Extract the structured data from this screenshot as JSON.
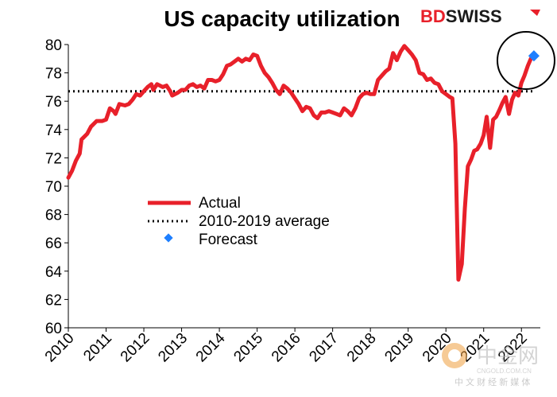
{
  "chart_data": {
    "type": "line",
    "title": "US capacity utilization",
    "ylim": [
      60,
      80
    ],
    "yticks": [
      60,
      62,
      64,
      66,
      68,
      70,
      72,
      74,
      76,
      78,
      80
    ],
    "xticks": [
      "2010",
      "2011",
      "2012",
      "2013",
      "2014",
      "2015",
      "2016",
      "2017",
      "2018",
      "2019",
      "2020",
      "2021",
      "2022"
    ],
    "xlim": [
      2010,
      2022.5
    ],
    "series": [
      {
        "name": "Actual",
        "color": "#e8202a",
        "points": [
          [
            2010.0,
            70.6
          ],
          [
            2010.1,
            71.1
          ],
          [
            2010.2,
            71.8
          ],
          [
            2010.3,
            72.3
          ],
          [
            2010.35,
            73.3
          ],
          [
            2010.5,
            73.7
          ],
          [
            2010.6,
            74.2
          ],
          [
            2010.75,
            74.6
          ],
          [
            2010.9,
            74.6
          ],
          [
            2011.0,
            74.7
          ],
          [
            2011.1,
            75.5
          ],
          [
            2011.2,
            75.3
          ],
          [
            2011.25,
            75.1
          ],
          [
            2011.35,
            75.8
          ],
          [
            2011.5,
            75.7
          ],
          [
            2011.6,
            75.8
          ],
          [
            2011.7,
            76.1
          ],
          [
            2011.8,
            76.5
          ],
          [
            2011.9,
            76.4
          ],
          [
            2012.0,
            76.7
          ],
          [
            2012.1,
            77.0
          ],
          [
            2012.2,
            77.2
          ],
          [
            2012.25,
            76.8
          ],
          [
            2012.35,
            77.2
          ],
          [
            2012.5,
            77.0
          ],
          [
            2012.6,
            77.1
          ],
          [
            2012.7,
            76.7
          ],
          [
            2012.75,
            76.4
          ],
          [
            2012.9,
            76.6
          ],
          [
            2013.0,
            76.8
          ],
          [
            2013.1,
            76.8
          ],
          [
            2013.2,
            77.1
          ],
          [
            2013.3,
            77.2
          ],
          [
            2013.4,
            77.0
          ],
          [
            2013.5,
            77.1
          ],
          [
            2013.6,
            76.9
          ],
          [
            2013.7,
            77.5
          ],
          [
            2013.8,
            77.5
          ],
          [
            2013.9,
            77.4
          ],
          [
            2014.0,
            77.5
          ],
          [
            2014.1,
            77.9
          ],
          [
            2014.2,
            78.5
          ],
          [
            2014.3,
            78.6
          ],
          [
            2014.4,
            78.8
          ],
          [
            2014.5,
            79.0
          ],
          [
            2014.6,
            78.8
          ],
          [
            2014.7,
            79.0
          ],
          [
            2014.8,
            78.9
          ],
          [
            2014.9,
            79.3
          ],
          [
            2015.0,
            79.2
          ],
          [
            2015.1,
            78.5
          ],
          [
            2015.2,
            78.0
          ],
          [
            2015.3,
            77.7
          ],
          [
            2015.4,
            77.3
          ],
          [
            2015.5,
            76.8
          ],
          [
            2015.6,
            76.5
          ],
          [
            2015.7,
            77.1
          ],
          [
            2015.8,
            76.9
          ],
          [
            2015.9,
            76.6
          ],
          [
            2016.0,
            76.2
          ],
          [
            2016.1,
            75.8
          ],
          [
            2016.2,
            75.3
          ],
          [
            2016.3,
            75.6
          ],
          [
            2016.4,
            75.5
          ],
          [
            2016.5,
            75.0
          ],
          [
            2016.6,
            74.8
          ],
          [
            2016.7,
            75.2
          ],
          [
            2016.8,
            75.2
          ],
          [
            2016.9,
            75.3
          ],
          [
            2017.0,
            75.2
          ],
          [
            2017.1,
            75.1
          ],
          [
            2017.2,
            75.0
          ],
          [
            2017.3,
            75.5
          ],
          [
            2017.4,
            75.3
          ],
          [
            2017.5,
            75.0
          ],
          [
            2017.6,
            75.5
          ],
          [
            2017.7,
            76.2
          ],
          [
            2017.8,
            76.5
          ],
          [
            2017.9,
            76.6
          ],
          [
            2018.0,
            76.5
          ],
          [
            2018.1,
            76.5
          ],
          [
            2018.2,
            77.5
          ],
          [
            2018.3,
            77.8
          ],
          [
            2018.4,
            78.1
          ],
          [
            2018.5,
            78.3
          ],
          [
            2018.6,
            79.4
          ],
          [
            2018.7,
            78.9
          ],
          [
            2018.8,
            79.5
          ],
          [
            2018.9,
            79.9
          ],
          [
            2019.0,
            79.6
          ],
          [
            2019.1,
            79.3
          ],
          [
            2019.2,
            78.9
          ],
          [
            2019.3,
            78.0
          ],
          [
            2019.4,
            77.9
          ],
          [
            2019.5,
            77.5
          ],
          [
            2019.6,
            77.6
          ],
          [
            2019.7,
            77.3
          ],
          [
            2019.8,
            77.2
          ],
          [
            2019.9,
            76.7
          ],
          [
            2020.0,
            76.5
          ],
          [
            2020.1,
            76.3
          ],
          [
            2020.17,
            76.2
          ],
          [
            2020.25,
            73.0
          ],
          [
            2020.33,
            63.4
          ],
          [
            2020.42,
            64.5
          ],
          [
            2020.5,
            68.4
          ],
          [
            2020.58,
            71.4
          ],
          [
            2020.67,
            71.9
          ],
          [
            2020.75,
            72.5
          ],
          [
            2020.83,
            72.6
          ],
          [
            2020.92,
            73.0
          ],
          [
            2021.0,
            73.6
          ],
          [
            2021.08,
            74.9
          ],
          [
            2021.17,
            72.7
          ],
          [
            2021.25,
            74.7
          ],
          [
            2021.33,
            74.9
          ],
          [
            2021.42,
            75.4
          ],
          [
            2021.5,
            75.9
          ],
          [
            2021.58,
            76.3
          ],
          [
            2021.67,
            75.1
          ],
          [
            2021.75,
            76.1
          ],
          [
            2021.83,
            76.6
          ],
          [
            2021.92,
            76.4
          ],
          [
            2022.0,
            77.3
          ],
          [
            2022.08,
            77.8
          ],
          [
            2022.17,
            78.5
          ],
          [
            2022.25,
            79.0
          ]
        ]
      },
      {
        "name": "2010-2019 average",
        "color": "#000000",
        "value": 76.7
      },
      {
        "name": "Forecast",
        "color": "#1e7fff",
        "points": [
          [
            2022.33,
            79.2
          ]
        ]
      }
    ],
    "legend": [
      "Actual",
      "2010-2019 average",
      "Forecast"
    ]
  },
  "brand": {
    "logo_text_1": "BD",
    "logo_text_2": "SWISS",
    "logo_color_bd": "#e8202a",
    "logo_color_swiss": "#1a1a1a"
  },
  "watermark": {
    "main": "中金网",
    "sub1": "CNGOLD.COM.CN",
    "sub2": "中 文 财 经 新 媒 体"
  }
}
